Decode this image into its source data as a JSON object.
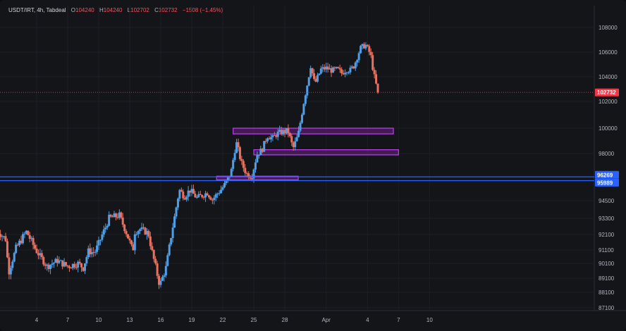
{
  "header": {
    "symbol": "USDT/IRT",
    "interval": "4h",
    "exchange": "Tabdeal",
    "open_label": "O",
    "open": "104240",
    "high_label": "H",
    "high": "104240",
    "low_label": "L",
    "low": "102702",
    "close_label": "C",
    "close": "102732",
    "change": "−1508 (−1.45%)"
  },
  "colors": {
    "up": "#4f9fe8",
    "down": "#e8715f",
    "box": "#c040f0",
    "hline": "#2962ff",
    "last_badge": "#f23645",
    "level_badge": "#2962ff"
  },
  "chart_data": {
    "type": "candlestick",
    "title": "",
    "y_axis_ticks": [
      "108000",
      "106000",
      "104000",
      "102000",
      "100000",
      "98000",
      "94500",
      "93300",
      "92100",
      "91100",
      "90100",
      "89100",
      "88100",
      "87100"
    ],
    "x_axis_ticks": [
      "4",
      "7",
      "10",
      "13",
      "16",
      "19",
      "22",
      "25",
      "28",
      "Apr",
      "4",
      "7",
      "10"
    ],
    "close_path": [
      {
        "d": 0,
        "v": 92500
      },
      {
        "d": 1,
        "v": 91800
      },
      {
        "d": 1.3,
        "v": 89500
      },
      {
        "d": 2,
        "v": 91200
      },
      {
        "d": 3,
        "v": 92300
      },
      {
        "d": 4,
        "v": 91000
      },
      {
        "d": 5,
        "v": 89900
      },
      {
        "d": 6,
        "v": 90300
      },
      {
        "d": 7,
        "v": 89900
      },
      {
        "d": 8,
        "v": 90100
      },
      {
        "d": 8.5,
        "v": 89800
      },
      {
        "d": 9,
        "v": 91000
      },
      {
        "d": 9.6,
        "v": 90900
      },
      {
        "d": 10,
        "v": 91500
      },
      {
        "d": 10.7,
        "v": 92700
      },
      {
        "d": 11,
        "v": 93300
      },
      {
        "d": 12,
        "v": 93500
      },
      {
        "d": 12.8,
        "v": 92000
      },
      {
        "d": 13.3,
        "v": 91000
      },
      {
        "d": 13.5,
        "v": 92300
      },
      {
        "d": 14,
        "v": 92500
      },
      {
        "d": 14.8,
        "v": 92200
      },
      {
        "d": 15.3,
        "v": 90500
      },
      {
        "d": 15.9,
        "v": 88600
      },
      {
        "d": 16.5,
        "v": 89800
      },
      {
        "d": 17,
        "v": 92000
      },
      {
        "d": 17.8,
        "v": 95300
      },
      {
        "d": 18.3,
        "v": 94800
      },
      {
        "d": 18.8,
        "v": 95300
      },
      {
        "d": 19.5,
        "v": 94700
      },
      {
        "d": 20.5,
        "v": 95100
      },
      {
        "d": 21,
        "v": 94600
      },
      {
        "d": 21.8,
        "v": 95300
      },
      {
        "d": 22.3,
        "v": 95800
      },
      {
        "d": 22.8,
        "v": 96600
      },
      {
        "d": 23.3,
        "v": 98900
      },
      {
        "d": 23.8,
        "v": 97300
      },
      {
        "d": 24.3,
        "v": 96500
      },
      {
        "d": 24.8,
        "v": 96300
      },
      {
        "d": 25.3,
        "v": 97900
      },
      {
        "d": 25.8,
        "v": 98300
      },
      {
        "d": 26.3,
        "v": 99400
      },
      {
        "d": 26.8,
        "v": 99200
      },
      {
        "d": 27.3,
        "v": 99600
      },
      {
        "d": 27.8,
        "v": 99700
      },
      {
        "d": 28.3,
        "v": 99800
      },
      {
        "d": 28.8,
        "v": 98400
      },
      {
        "d": 29.3,
        "v": 99500
      },
      {
        "d": 29.8,
        "v": 101800
      },
      {
        "d": 30.2,
        "v": 103500
      },
      {
        "d": 30.5,
        "v": 104900
      },
      {
        "d": 30.9,
        "v": 103400
      },
      {
        "d": 31.5,
        "v": 104600
      },
      {
        "d": 32,
        "v": 104700
      },
      {
        "d": 32.6,
        "v": 104500
      },
      {
        "d": 33.1,
        "v": 104600
      },
      {
        "d": 33.5,
        "v": 104300
      },
      {
        "d": 34,
        "v": 104600
      },
      {
        "d": 34.3,
        "v": 104500
      },
      {
        "d": 34.7,
        "v": 104900
      },
      {
        "d": 35.3,
        "v": 106300
      },
      {
        "d": 35.8,
        "v": 106600
      },
      {
        "d": 36.3,
        "v": 105800
      },
      {
        "d": 36.6,
        "v": 104240
      },
      {
        "d": 37,
        "v": 102732
      }
    ],
    "boxes": [
      {
        "from_day": 23,
        "to_day": 38.5,
        "low": 99550,
        "high": 100000
      },
      {
        "from_day": 25,
        "to_day": 39,
        "low": 97900,
        "high": 98300
      },
      {
        "from_day": 21.4,
        "to_day": 29.3,
        "low": 96050,
        "high": 96320
      }
    ],
    "levels": [
      96269,
      95989
    ],
    "last_price": 102732
  },
  "price_badges": {
    "last": "102732",
    "upper": "96269",
    "lower": "95989"
  }
}
